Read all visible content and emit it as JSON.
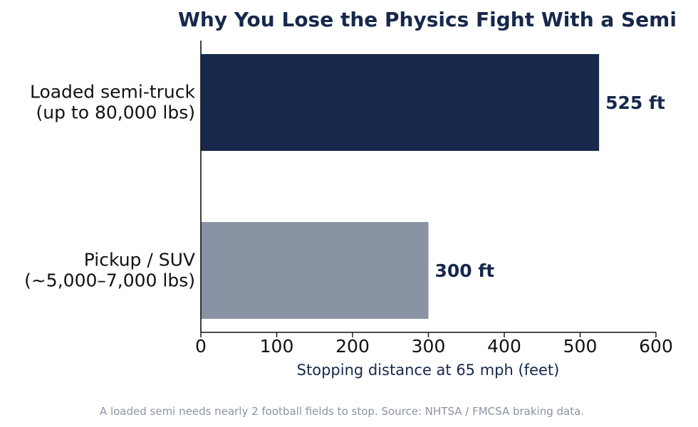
{
  "chart_data": {
    "type": "bar",
    "orientation": "horizontal",
    "title": "Why You Lose the Physics Fight With a Semi",
    "xlabel": "Stopping distance at 65 mph (feet)",
    "ylabel": "",
    "xlim": [
      0,
      600
    ],
    "xticks": [
      0,
      100,
      200,
      300,
      400,
      500,
      600
    ],
    "grid": false,
    "categories": [
      [
        "Loaded semi-truck",
        "(up to 80,000 lbs)"
      ],
      [
        "Pickup / SUV",
        "(~5,000–7,000 lbs)"
      ]
    ],
    "values": [
      525,
      300
    ],
    "value_labels": [
      "525 ft",
      "300 ft"
    ],
    "colors": [
      "#17284b",
      "#8a93a4"
    ],
    "value_label_color": "#17284b",
    "footnote": "A loaded semi needs nearly 2 football fields to stop. Source: NHTSA / FMCSA braking data."
  }
}
